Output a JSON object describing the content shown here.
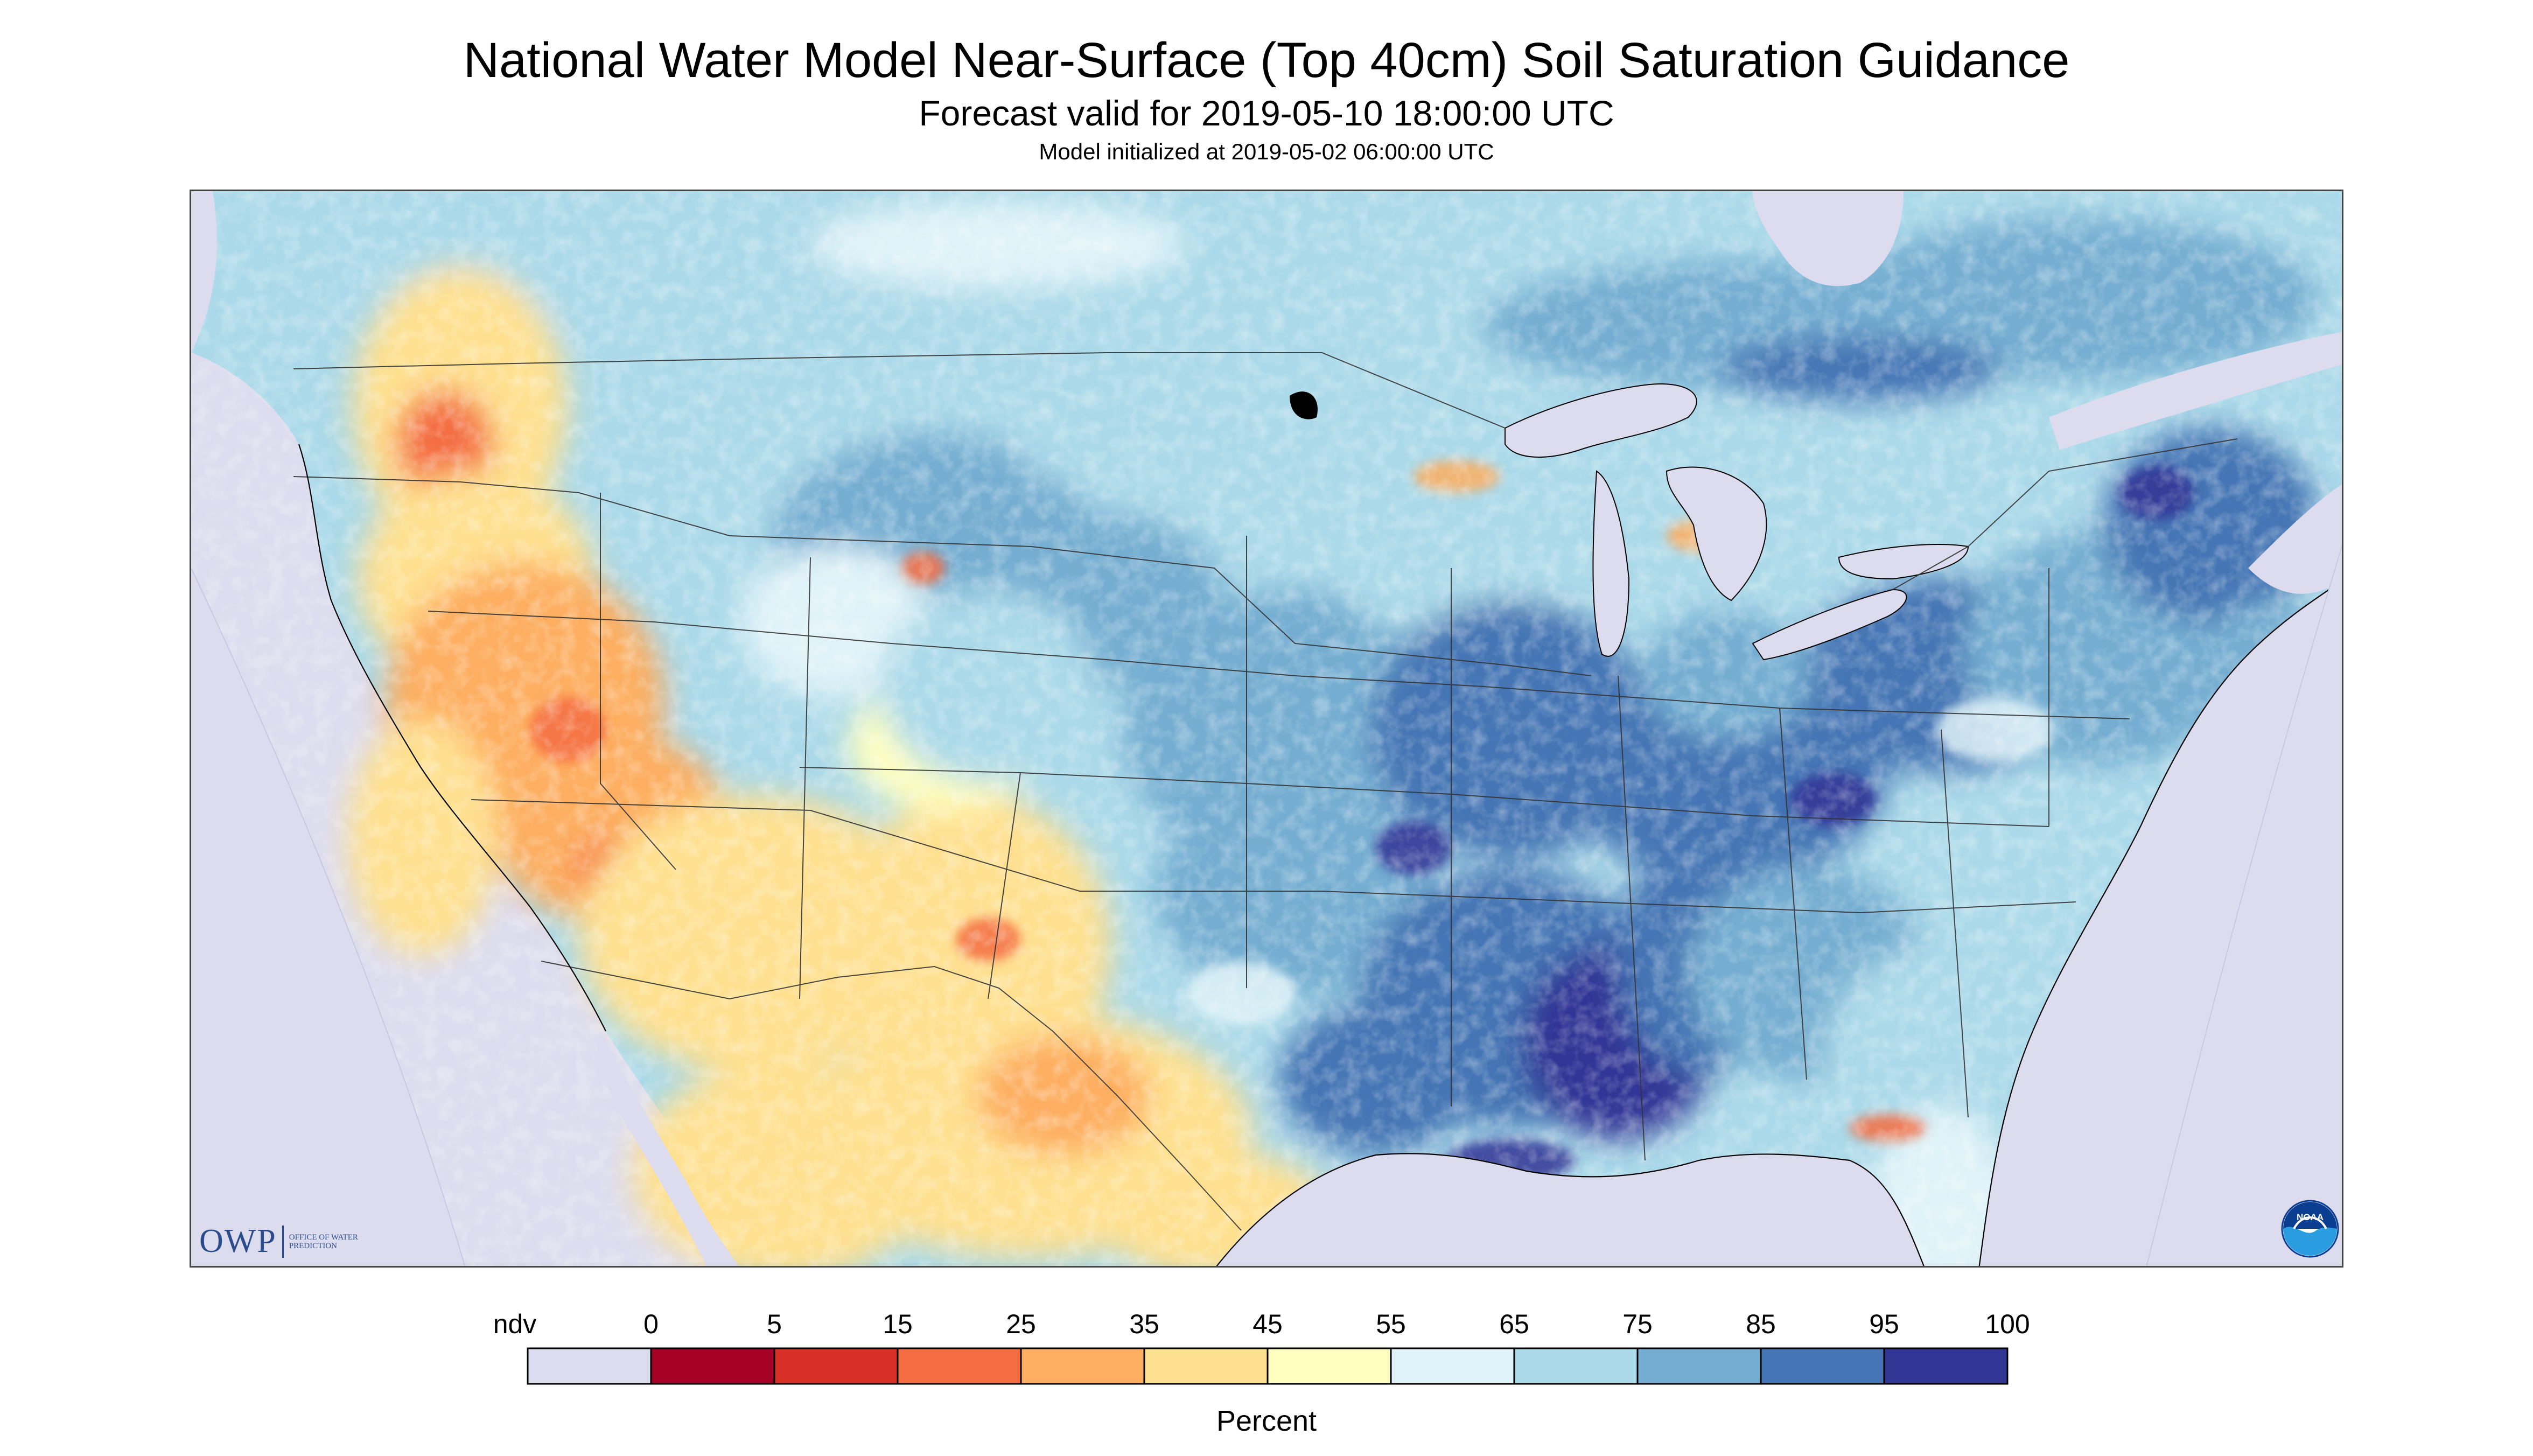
{
  "header": {
    "title": "National Water Model Near-Surface (Top 40cm) Soil Saturation Guidance",
    "forecast_valid": "Forecast valid for 2019-05-10 18:00:00 UTC",
    "model_initialized": "Model initialized at 2019-05-02 06:00:00 UTC"
  },
  "map": {
    "projection": "lambert-conformal-conus",
    "background_color": "#dcdcee",
    "water_color": "#dcdcee",
    "regional_tendency": {
      "pacific_northwest_interior": "35-45",
      "great_basin_southwest": "25-45",
      "northern_mexico": "35-45",
      "great_plains_north": "65-85",
      "midwest_ohio_valley": "75-95",
      "lower_mississippi_gulf_coast": "85-100",
      "northeast": "75-95",
      "southeast_florida": "55-75"
    }
  },
  "logos": {
    "owp": {
      "letters": "OWP",
      "name": "OFFICE OF WATER PREDICTION"
    },
    "noaa": {
      "letters": "NOAA"
    }
  },
  "legend": {
    "caption": "Percent",
    "boxes": [
      {
        "label": "ndv",
        "color": "#dcdcee"
      },
      {
        "label": "0-5",
        "color": "#a50026"
      },
      {
        "label": "5-15",
        "color": "#d73027"
      },
      {
        "label": "15-25",
        "color": "#f46d43"
      },
      {
        "label": "25-35",
        "color": "#fdae61"
      },
      {
        "label": "35-45",
        "color": "#fee090"
      },
      {
        "label": "45-55",
        "color": "#ffffbf"
      },
      {
        "label": "55-65",
        "color": "#e0f3f8"
      },
      {
        "label": "65-75",
        "color": "#abd9e9"
      },
      {
        "label": "75-85",
        "color": "#74add1"
      },
      {
        "label": "85-95",
        "color": "#4575b4"
      },
      {
        "label": "95-100",
        "color": "#313695"
      }
    ],
    "tick_labels": [
      "ndv",
      "0",
      "5",
      "15",
      "25",
      "35",
      "45",
      "55",
      "65",
      "75",
      "85",
      "95",
      "100"
    ]
  }
}
